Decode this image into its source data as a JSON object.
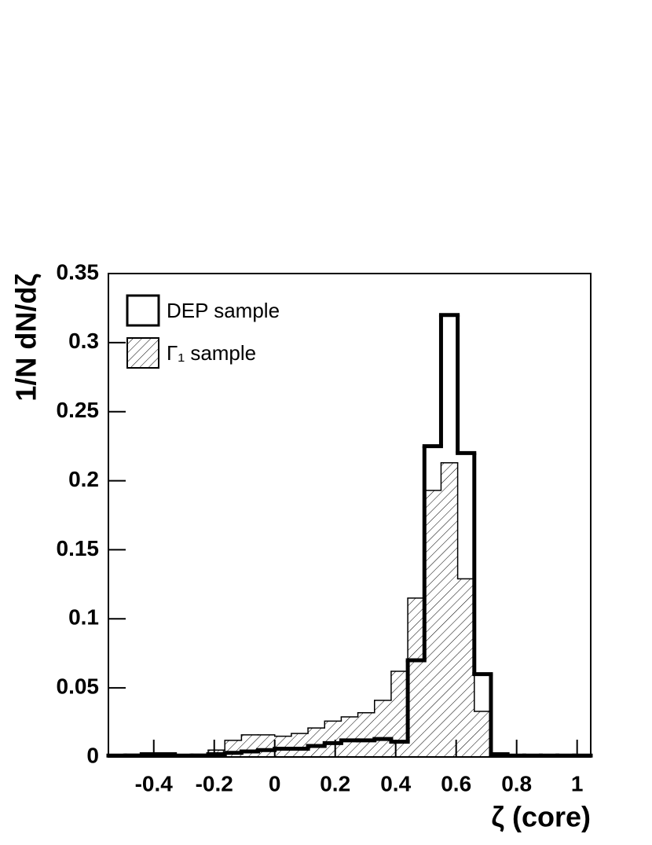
{
  "chart_data": {
    "type": "histogram",
    "x_label": "ζ (core)",
    "y_label": "1/N dN/dζ",
    "bins": [
      -0.55,
      -0.495,
      -0.44,
      -0.385,
      -0.33,
      -0.275,
      -0.22,
      -0.165,
      -0.11,
      -0.055,
      0,
      0.055,
      0.11,
      0.165,
      0.22,
      0.275,
      0.33,
      0.385,
      0.44,
      0.495,
      0.55,
      0.605,
      0.66,
      0.715,
      0.77,
      0.825,
      0.88,
      0.935,
      0.99,
      1.045
    ],
    "series": [
      {
        "name": "DEP sample",
        "color": "#000000",
        "hatch": false,
        "values": [
          0.001,
          0.001,
          0.002,
          0.002,
          0.001,
          0.001,
          0.002,
          0.003,
          0.004,
          0.005,
          0.006,
          0.006,
          0.008,
          0.01,
          0.012,
          0.012,
          0.013,
          0.011,
          0.07,
          0.225,
          0.32,
          0.22,
          0.06,
          0.002,
          0.001,
          0.001,
          0.001,
          0.001,
          0.001
        ]
      },
      {
        "name": "Γ₁ sample",
        "color": "#000000",
        "hatch": true,
        "values": [
          0.001,
          0.002,
          0.002,
          0.001,
          0.001,
          0.002,
          0.005,
          0.012,
          0.016,
          0.016,
          0.015,
          0.017,
          0.021,
          0.026,
          0.029,
          0.032,
          0.041,
          0.062,
          0.115,
          0.193,
          0.213,
          0.129,
          0.033,
          0.001,
          0.001,
          0.001,
          0.001,
          0.001,
          0.001
        ]
      }
    ],
    "xlim": [
      -0.55,
      1.045
    ],
    "ylim": [
      0,
      0.35
    ],
    "xticks": [
      -0.4,
      -0.2,
      0,
      0.2,
      0.4,
      0.6,
      0.8,
      1
    ],
    "yticks": [
      0,
      0.05,
      0.1,
      0.15,
      0.2,
      0.25,
      0.3,
      0.35
    ],
    "legend": "upper left"
  }
}
